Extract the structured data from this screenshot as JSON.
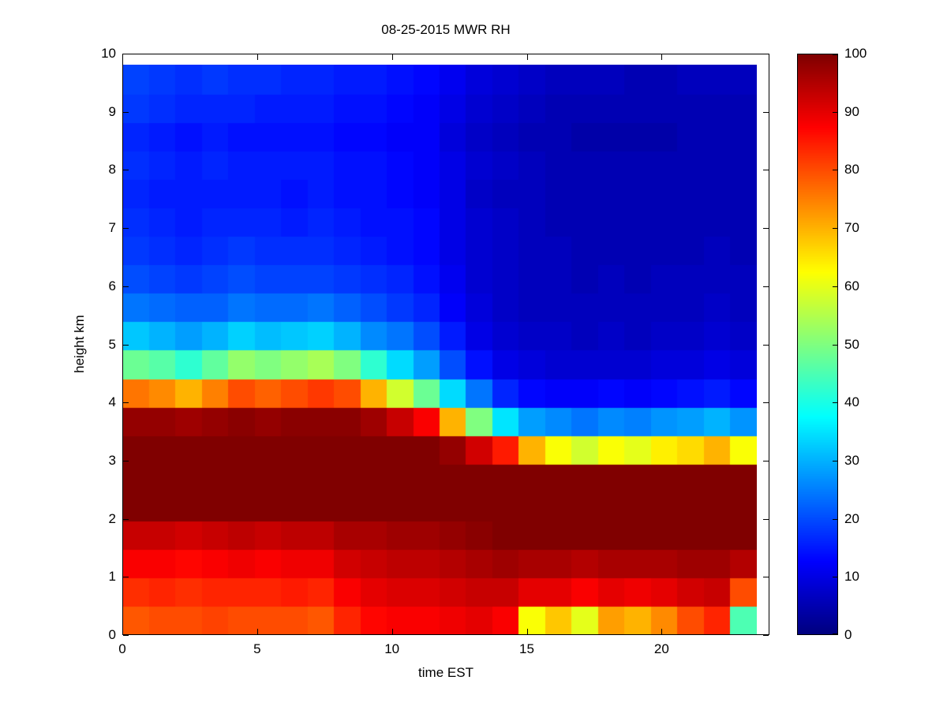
{
  "figure": {
    "background": "#ffffff",
    "axis_color": "#000000"
  },
  "chart_data": {
    "type": "heatmap",
    "title": "08-25-2015 MWR RH",
    "xlabel": "time EST",
    "ylabel": "height km",
    "colormap": "jet",
    "x_range": [
      0,
      24
    ],
    "y_range": [
      0,
      10
    ],
    "x_ticks": [
      0,
      5,
      10,
      15,
      20
    ],
    "y_ticks": [
      0,
      1,
      2,
      3,
      4,
      5,
      6,
      7,
      8,
      9,
      10
    ],
    "colorbar": {
      "min": 0,
      "max": 100,
      "ticks": [
        0,
        10,
        20,
        30,
        40,
        50,
        60,
        70,
        80,
        90,
        100
      ]
    },
    "grid_note": "values[t][h]: t = hour index (0-23, EST), h = height index bottom-up at height_centers_km",
    "hours": [
      0,
      1,
      2,
      3,
      4,
      5,
      6,
      7,
      8,
      9,
      10,
      11,
      12,
      13,
      14,
      15,
      16,
      17,
      18,
      19,
      20,
      21,
      22,
      23
    ],
    "height_centers_km": [
      0.25,
      0.75,
      1.25,
      1.75,
      2.25,
      2.75,
      3.25,
      3.75,
      4.25,
      4.75,
      5.25,
      5.75,
      6.25,
      6.75,
      7.25,
      7.75,
      8.25,
      8.75,
      9.25,
      9.75
    ],
    "values": [
      [
        79,
        83,
        88,
        93,
        100,
        100,
        100,
        98,
        76,
        48,
        32,
        24,
        20,
        18,
        17,
        16,
        17,
        16,
        18,
        19
      ],
      [
        80,
        84,
        88,
        93,
        100,
        100,
        100,
        98,
        74,
        46,
        30,
        23,
        19,
        17,
        16,
        15,
        16,
        15,
        17,
        18
      ],
      [
        80,
        83,
        87,
        92,
        100,
        100,
        100,
        97,
        70,
        42,
        28,
        22,
        18,
        16,
        15,
        15,
        15,
        14,
        16,
        17
      ],
      [
        81,
        84,
        88,
        93,
        100,
        100,
        100,
        98,
        75,
        47,
        30,
        22,
        19,
        17,
        16,
        15,
        16,
        15,
        16,
        18
      ],
      [
        80,
        84,
        89,
        94,
        100,
        100,
        100,
        99,
        80,
        52,
        33,
        24,
        20,
        18,
        16,
        15,
        15,
        14,
        16,
        17
      ],
      [
        80,
        84,
        88,
        93,
        100,
        100,
        100,
        98,
        78,
        50,
        31,
        23,
        19,
        17,
        16,
        15,
        15,
        14,
        15,
        17
      ],
      [
        80,
        85,
        89,
        94,
        100,
        100,
        100,
        99,
        80,
        52,
        32,
        23,
        19,
        17,
        15,
        14,
        15,
        14,
        15,
        16
      ],
      [
        79,
        84,
        89,
        94,
        100,
        100,
        100,
        99,
        82,
        54,
        33,
        24,
        19,
        17,
        16,
        15,
        15,
        14,
        15,
        16
      ],
      [
        84,
        88,
        92,
        96,
        100,
        100,
        100,
        99,
        80,
        50,
        30,
        22,
        18,
        16,
        15,
        14,
        14,
        13,
        14,
        15
      ],
      [
        87,
        90,
        93,
        96,
        100,
        100,
        100,
        97,
        70,
        42,
        26,
        20,
        17,
        15,
        14,
        14,
        14,
        13,
        14,
        15
      ],
      [
        88,
        91,
        94,
        97,
        100,
        100,
        100,
        93,
        58,
        34,
        24,
        18,
        16,
        14,
        14,
        13,
        13,
        12,
        13,
        14
      ],
      [
        88,
        91,
        94,
        97,
        100,
        100,
        100,
        88,
        48,
        28,
        20,
        16,
        14,
        13,
        13,
        12,
        12,
        12,
        12,
        13
      ],
      [
        89,
        92,
        95,
        98,
        100,
        100,
        98,
        70,
        34,
        20,
        15,
        12,
        11,
        10,
        10,
        10,
        10,
        9,
        10,
        11
      ],
      [
        90,
        93,
        96,
        99,
        100,
        100,
        92,
        50,
        24,
        14,
        10,
        9,
        8,
        8,
        8,
        7,
        8,
        7,
        8,
        9
      ],
      [
        88,
        93,
        97,
        100,
        100,
        100,
        85,
        35,
        16,
        10,
        8,
        7,
        7,
        7,
        7,
        6,
        7,
        6,
        7,
        8
      ],
      [
        62,
        90,
        96,
        100,
        100,
        100,
        70,
        28,
        13,
        9,
        7,
        6,
        6,
        6,
        6,
        6,
        6,
        5,
        6,
        7
      ],
      [
        68,
        90,
        96,
        100,
        100,
        100,
        62,
        26,
        12,
        8,
        7,
        6,
        6,
        6,
        5,
        5,
        5,
        5,
        5,
        6
      ],
      [
        60,
        88,
        95,
        100,
        100,
        100,
        58,
        24,
        12,
        8,
        6,
        6,
        5,
        5,
        5,
        5,
        5,
        4,
        5,
        6
      ],
      [
        72,
        90,
        96,
        100,
        100,
        100,
        62,
        26,
        13,
        8,
        7,
        6,
        6,
        5,
        5,
        5,
        5,
        4,
        5,
        6
      ],
      [
        70,
        89,
        96,
        100,
        100,
        100,
        60,
        25,
        12,
        8,
        6,
        6,
        5,
        5,
        5,
        5,
        5,
        4,
        5,
        5
      ],
      [
        74,
        90,
        96,
        100,
        100,
        100,
        64,
        27,
        13,
        9,
        7,
        6,
        6,
        5,
        5,
        5,
        5,
        4,
        5,
        5
      ],
      [
        80,
        92,
        97,
        100,
        100,
        100,
        66,
        28,
        14,
        9,
        7,
        6,
        6,
        5,
        5,
        5,
        5,
        5,
        5,
        6
      ],
      [
        84,
        93,
        97,
        100,
        100,
        100,
        70,
        30,
        15,
        10,
        8,
        7,
        6,
        6,
        5,
        5,
        5,
        5,
        5,
        6
      ],
      [
        45,
        80,
        95,
        100,
        100,
        100,
        62,
        27,
        13,
        9,
        7,
        6,
        6,
        5,
        5,
        5,
        5,
        5,
        5,
        6
      ]
    ]
  }
}
